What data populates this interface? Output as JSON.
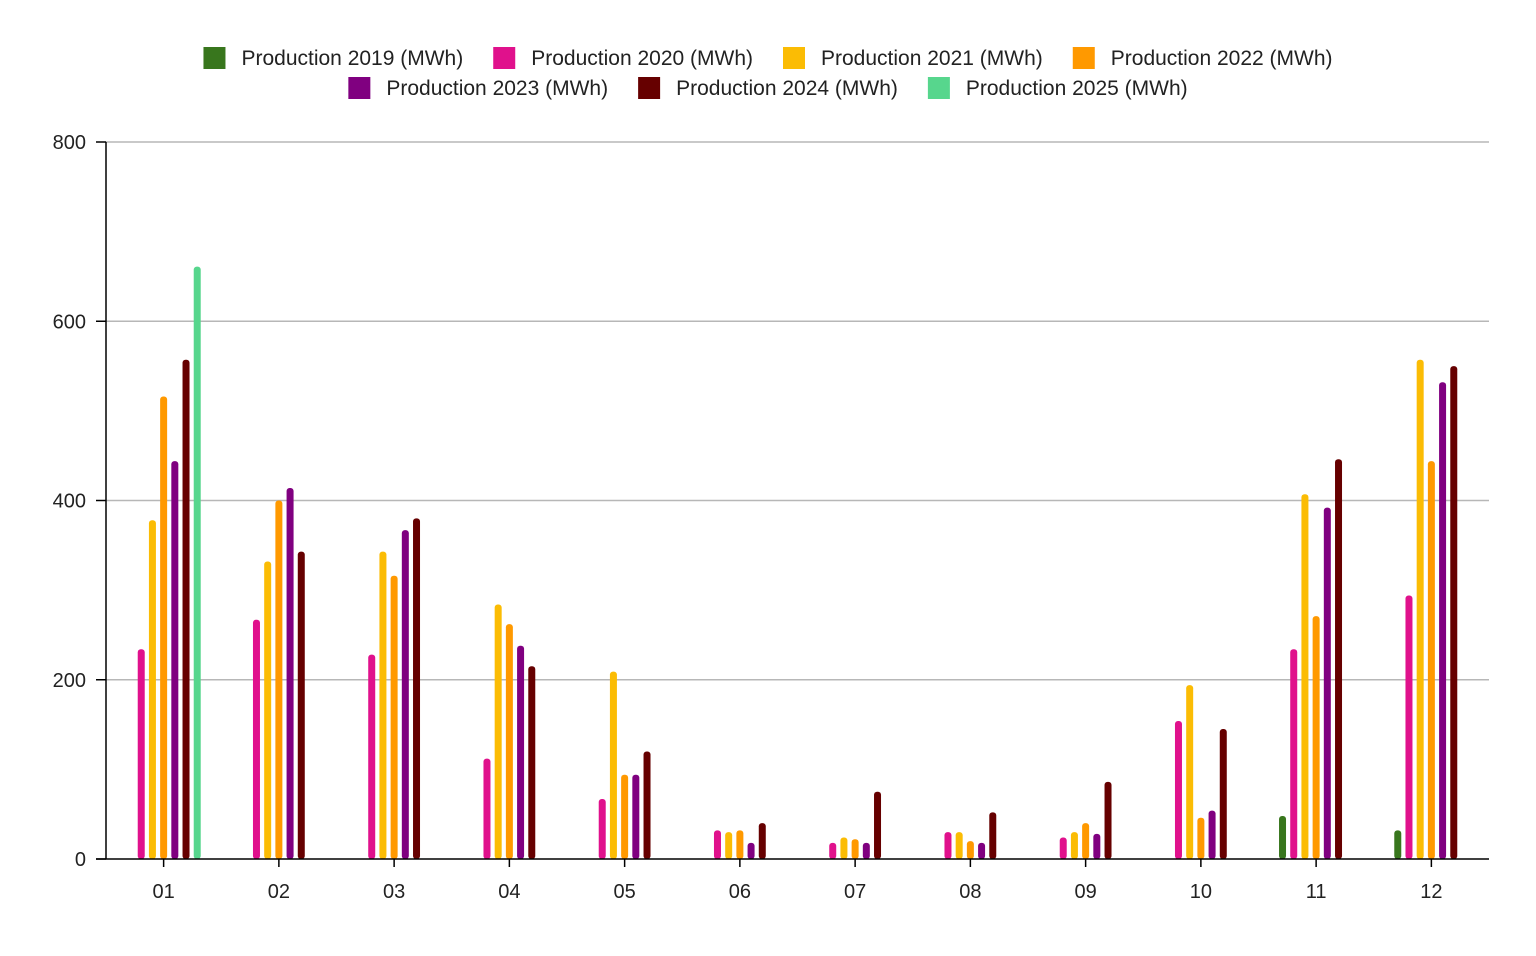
{
  "chart_data": {
    "type": "bar",
    "title": "",
    "xlabel": "",
    "ylabel": "",
    "ylim": [
      0,
      800
    ],
    "yticks": [
      "0",
      "200",
      "400",
      "600",
      "800"
    ],
    "grid": true,
    "legend_position": "top",
    "categories": [
      "01",
      "02",
      "03",
      "04",
      "05",
      "06",
      "07",
      "08",
      "09",
      "10",
      "11",
      "12"
    ],
    "series": [
      {
        "name": "Production 2019 (MWh)",
        "color": "#38761d",
        "values": [
          null,
          null,
          null,
          null,
          null,
          null,
          null,
          null,
          null,
          null,
          48,
          32
        ]
      },
      {
        "name": "Production 2020 (MWh)",
        "color": "#e0118c",
        "values": [
          234,
          267,
          228,
          112,
          67,
          32,
          18,
          30,
          24,
          154,
          234,
          294
        ]
      },
      {
        "name": "Production 2021 (MWh)",
        "color": "#fbbc04",
        "values": [
          378,
          332,
          343,
          284,
          209,
          30,
          24,
          30,
          30,
          194,
          407,
          557
        ]
      },
      {
        "name": "Production 2022 (MWh)",
        "color": "#ff9900",
        "values": [
          516,
          400,
          316,
          262,
          94,
          32,
          22,
          20,
          40,
          46,
          271,
          444
        ]
      },
      {
        "name": "Production 2023 (MWh)",
        "color": "#800080",
        "values": [
          444,
          414,
          367,
          238,
          94,
          18,
          18,
          18,
          28,
          54,
          392,
          532
        ]
      },
      {
        "name": "Production 2024 (MWh)",
        "color": "#660000",
        "values": [
          557,
          343,
          380,
          215,
          120,
          40,
          75,
          52,
          86,
          145,
          446,
          550
        ]
      },
      {
        "name": "Production 2025 (MWh)",
        "color": "#57d68d",
        "values": [
          661,
          null,
          null,
          null,
          null,
          null,
          null,
          null,
          null,
          null,
          null,
          null
        ]
      }
    ]
  }
}
